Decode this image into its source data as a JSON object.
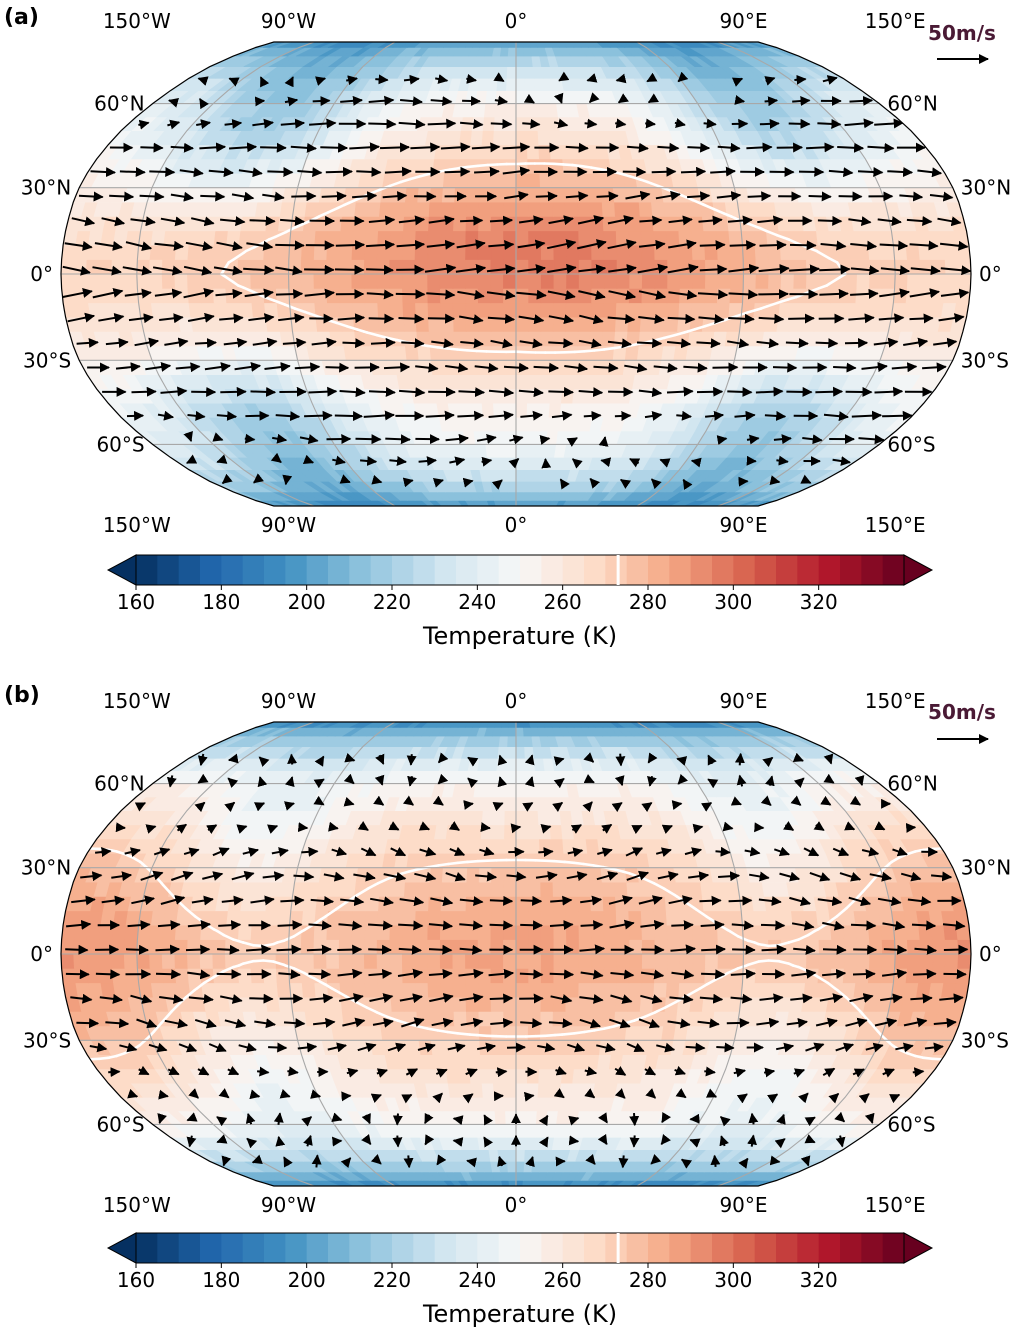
{
  "chart_data": [
    {
      "type": "heatmap",
      "panel_label": "(a)",
      "projection": "robinson",
      "field": "surface temperature with wind vectors",
      "hot_spot_lon": 0,
      "hot_spot_lat": 5,
      "peak_temperature": 290,
      "contour_temperature": 273,
      "lon_labels": [
        "150°W",
        "90°W",
        "0°",
        "90°E",
        "150°E"
      ],
      "lon_values": [
        -150,
        -90,
        0,
        90,
        150
      ],
      "lat_labels_left": [
        "60°N",
        "30°N",
        "0°",
        "30°S",
        "60°S"
      ],
      "lat_labels_right": [
        "60°N",
        "30°N",
        "0°",
        "30°S",
        "60°S"
      ],
      "lat_values": [
        60,
        30,
        0,
        -30,
        -60
      ],
      "reference_vector": {
        "label": "50m/s",
        "speed": 50
      },
      "colorbar": {
        "label": "Temperature (K)",
        "min": 160,
        "max": 340,
        "step": 5,
        "ticks": [
          "160",
          "180",
          "200",
          "220",
          "240",
          "260",
          "280",
          "300",
          "320"
        ],
        "tick_values": [
          160,
          180,
          200,
          220,
          240,
          260,
          280,
          300,
          320
        ],
        "extend": "both",
        "marker": 273
      },
      "colormap": [
        "#053061",
        "#2166ac",
        "#4393c3",
        "#92c5de",
        "#d1e5f0",
        "#f7f7f7",
        "#fddbc7",
        "#f4a582",
        "#d6604d",
        "#b2182b",
        "#67001f"
      ]
    },
    {
      "type": "heatmap",
      "panel_label": "(b)",
      "projection": "robinson",
      "field": "surface temperature with wind vectors",
      "hot_spot_lon": 0,
      "hot_spot_lat": 0,
      "peak_temperature": 284,
      "contour_temperature": 273,
      "lon_labels": [
        "150°W",
        "90°W",
        "0°",
        "90°E",
        "150°E"
      ],
      "lon_values": [
        -150,
        -90,
        0,
        90,
        150
      ],
      "lat_labels_left": [
        "60°N",
        "30°N",
        "0°",
        "30°S",
        "60°S"
      ],
      "lat_labels_right": [
        "60°N",
        "30°N",
        "0°",
        "30°S",
        "60°S"
      ],
      "lat_values": [
        60,
        30,
        0,
        -30,
        -60
      ],
      "reference_vector": {
        "label": "50m/s",
        "speed": 50
      },
      "colorbar": {
        "label": "Temperature (K)",
        "min": 160,
        "max": 340,
        "step": 5,
        "ticks": [
          "160",
          "180",
          "200",
          "220",
          "240",
          "260",
          "280",
          "300",
          "320"
        ],
        "tick_values": [
          160,
          180,
          200,
          220,
          240,
          260,
          280,
          300,
          320
        ],
        "extend": "both",
        "marker": 273
      },
      "colormap": [
        "#053061",
        "#2166ac",
        "#4393c3",
        "#92c5de",
        "#d1e5f0",
        "#f7f7f7",
        "#fddbc7",
        "#f4a582",
        "#d6604d",
        "#b2182b",
        "#67001f"
      ]
    }
  ]
}
